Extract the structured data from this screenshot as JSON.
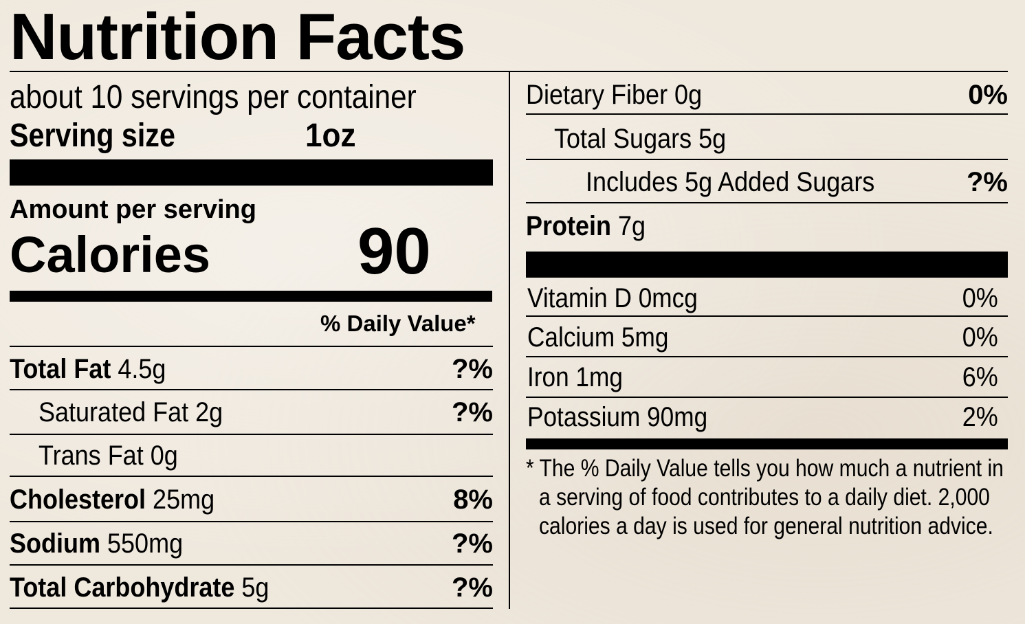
{
  "title": "Nutrition Facts",
  "servings_per_container": "about 10 servings per container",
  "serving_size_label": "Serving size",
  "serving_size_value": "1oz",
  "amount_per_serving": "Amount per serving",
  "calories_label": "Calories",
  "calories_value": "90",
  "daily_value_header": "% Daily Value*",
  "left_rows": [
    {
      "name": "Total Fat",
      "amount": "4.5g",
      "dv": "?%"
    },
    {
      "name": "Saturated Fat 2g",
      "amount": "",
      "dv": "?%"
    },
    {
      "name": "Trans Fat 0g",
      "amount": "",
      "dv": ""
    },
    {
      "name": "Cholesterol",
      "amount": "25mg",
      "dv": "8%"
    },
    {
      "name": "Sodium",
      "amount": "550mg",
      "dv": "?%"
    },
    {
      "name": "Total Carbohydrate",
      "amount": "5g",
      "dv": "?%"
    }
  ],
  "right_rows": [
    {
      "name": "Dietary Fiber 0g",
      "dv": "0%"
    },
    {
      "name": "Total Sugars 5g",
      "dv": ""
    },
    {
      "name": "Includes 5g Added Sugars",
      "dv": "?%"
    }
  ],
  "protein_label": "Protein",
  "protein_amount": "7g",
  "vitamins": [
    {
      "name": "Vitamin D 0mcg",
      "dv": "0%"
    },
    {
      "name": "Calcium 5mg",
      "dv": "0%"
    },
    {
      "name": "Iron 1mg",
      "dv": "6%"
    },
    {
      "name": "Potassium 90mg",
      "dv": "2%"
    }
  ],
  "footnote_lines": [
    "* The % Daily Value tells you how much a nutrient in",
    "a serving of food contributes to a daily diet. 2,000",
    "calories a day is used for general nutrition advice."
  ]
}
